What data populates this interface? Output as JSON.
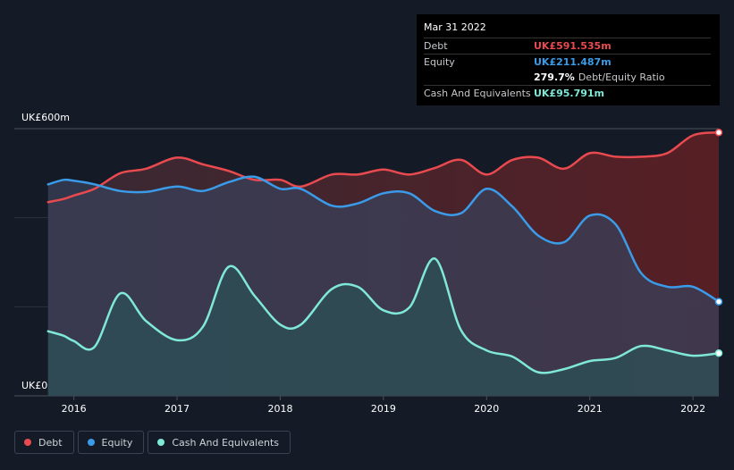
{
  "tooltip": {
    "date": "Mar 31 2022",
    "rows": [
      {
        "label": "Debt",
        "value": "UK£591.535m",
        "color": "#e84a4f"
      },
      {
        "label": "Equity",
        "value": "UK£211.487m",
        "color": "#3a9be8"
      }
    ],
    "ratio_value": "279.7%",
    "ratio_label": "Debt/Equity Ratio",
    "cash": {
      "label": "Cash And Equivalents",
      "value": "UK£95.791m",
      "color": "#7fe8d6"
    }
  },
  "chart_data": {
    "type": "area",
    "ylabel_top": "UK£600m",
    "ylabel_bottom": "UK£0",
    "ylim": [
      0,
      600
    ],
    "xlim": [
      2015.7,
      2022.25
    ],
    "x_ticks": [
      "2016",
      "2017",
      "2018",
      "2019",
      "2020",
      "2021",
      "2022"
    ],
    "grid": true,
    "legend_position": "bottom-left",
    "series": [
      {
        "name": "Debt",
        "color": "#e84a4f",
        "points": [
          [
            2015.75,
            435
          ],
          [
            2015.9,
            442
          ],
          [
            2016.0,
            450
          ],
          [
            2016.2,
            465
          ],
          [
            2016.45,
            500
          ],
          [
            2016.7,
            510
          ],
          [
            2017.0,
            535
          ],
          [
            2017.25,
            520
          ],
          [
            2017.5,
            505
          ],
          [
            2017.75,
            485
          ],
          [
            2018.0,
            485
          ],
          [
            2018.2,
            470
          ],
          [
            2018.5,
            497
          ],
          [
            2018.75,
            497
          ],
          [
            2019.0,
            508
          ],
          [
            2019.25,
            497
          ],
          [
            2019.5,
            512
          ],
          [
            2019.75,
            530
          ],
          [
            2020.0,
            497
          ],
          [
            2020.25,
            530
          ],
          [
            2020.5,
            535
          ],
          [
            2020.75,
            510
          ],
          [
            2021.0,
            545
          ],
          [
            2021.25,
            537
          ],
          [
            2021.5,
            537
          ],
          [
            2021.75,
            545
          ],
          [
            2022.0,
            585
          ],
          [
            2022.25,
            591.535
          ]
        ]
      },
      {
        "name": "Equity",
        "color": "#3a9be8",
        "points": [
          [
            2015.75,
            475
          ],
          [
            2015.9,
            485
          ],
          [
            2016.0,
            483
          ],
          [
            2016.2,
            475
          ],
          [
            2016.45,
            460
          ],
          [
            2016.7,
            458
          ],
          [
            2017.0,
            470
          ],
          [
            2017.25,
            460
          ],
          [
            2017.5,
            480
          ],
          [
            2017.75,
            492
          ],
          [
            2018.0,
            465
          ],
          [
            2018.2,
            465
          ],
          [
            2018.5,
            427
          ],
          [
            2018.75,
            432
          ],
          [
            2019.0,
            455
          ],
          [
            2019.25,
            455
          ],
          [
            2019.5,
            415
          ],
          [
            2019.75,
            410
          ],
          [
            2020.0,
            465
          ],
          [
            2020.25,
            425
          ],
          [
            2020.5,
            360
          ],
          [
            2020.75,
            345
          ],
          [
            2021.0,
            405
          ],
          [
            2021.25,
            385
          ],
          [
            2021.5,
            275
          ],
          [
            2021.75,
            245
          ],
          [
            2022.0,
            245
          ],
          [
            2022.25,
            211.487
          ]
        ]
      },
      {
        "name": "Cash And Equivalents",
        "color": "#7fe8d6",
        "points": [
          [
            2015.75,
            145
          ],
          [
            2015.9,
            135
          ],
          [
            2016.0,
            123
          ],
          [
            2016.2,
            110
          ],
          [
            2016.45,
            230
          ],
          [
            2016.7,
            168
          ],
          [
            2017.0,
            125
          ],
          [
            2017.25,
            155
          ],
          [
            2017.5,
            290
          ],
          [
            2017.75,
            225
          ],
          [
            2018.0,
            160
          ],
          [
            2018.2,
            160
          ],
          [
            2018.5,
            240
          ],
          [
            2018.75,
            245
          ],
          [
            2019.0,
            192
          ],
          [
            2019.25,
            198
          ],
          [
            2019.5,
            308
          ],
          [
            2019.75,
            148
          ],
          [
            2020.0,
            102
          ],
          [
            2020.25,
            88
          ],
          [
            2020.5,
            53
          ],
          [
            2020.75,
            60
          ],
          [
            2021.0,
            78
          ],
          [
            2021.25,
            85
          ],
          [
            2021.5,
            112
          ],
          [
            2021.75,
            102
          ],
          [
            2022.0,
            90
          ],
          [
            2022.25,
            95.791
          ]
        ]
      }
    ]
  },
  "legend": [
    {
      "label": "Debt",
      "color": "#e84a4f"
    },
    {
      "label": "Equity",
      "color": "#3a9be8"
    },
    {
      "label": "Cash And Equivalents",
      "color": "#7fe8d6"
    }
  ]
}
